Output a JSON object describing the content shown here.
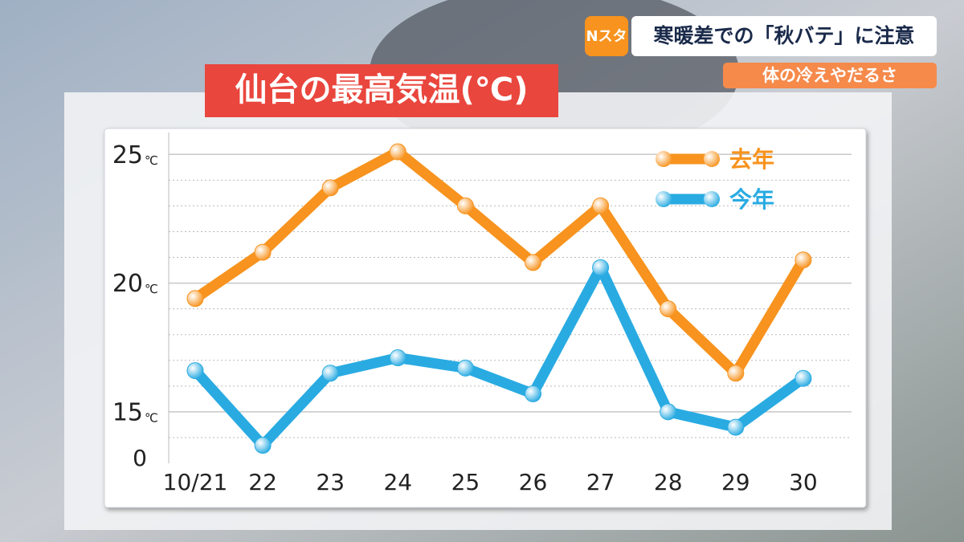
{
  "header": {
    "logo": "Nスタ",
    "headline": "寒暖差での「秋バテ」に注意",
    "subheadline": "体の冷えやだるさ"
  },
  "chart_data": {
    "type": "line",
    "title": "仙台の最高気温(℃)",
    "categories": [
      "10/21",
      "22",
      "23",
      "24",
      "25",
      "26",
      "27",
      "28",
      "29",
      "30"
    ],
    "series": [
      {
        "name": "去年",
        "color": "#f7931e",
        "values": [
          19.4,
          21.2,
          23.7,
          25.1,
          23.0,
          20.8,
          23.0,
          19.0,
          16.5,
          20.9
        ]
      },
      {
        "name": "今年",
        "color": "#29abe2",
        "values": [
          16.6,
          13.7,
          16.5,
          17.1,
          16.7,
          15.7,
          20.6,
          15.0,
          14.4,
          16.3
        ]
      }
    ],
    "ylim": [
      13,
      25.85
    ],
    "yticks": [
      15,
      20,
      25
    ],
    "minor_yticks": [
      14,
      16,
      17,
      18,
      19,
      21,
      22,
      23,
      24
    ],
    "y_unit": "℃",
    "y_axis_floor_label": "0",
    "grid": true,
    "legend": "upper right"
  }
}
